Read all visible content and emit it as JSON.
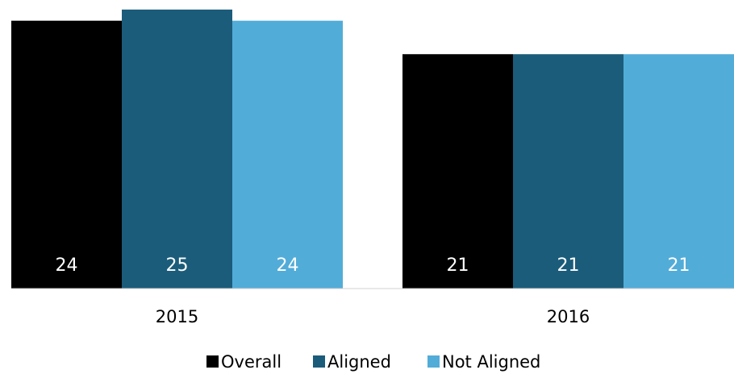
{
  "chart_data": {
    "type": "bar",
    "categories": [
      "2015",
      "2016"
    ],
    "series": [
      {
        "name": "Overall",
        "color": "#000000",
        "values": [
          24,
          21
        ]
      },
      {
        "name": "Aligned",
        "color": "#1b5c7a",
        "values": [
          25,
          21
        ]
      },
      {
        "name": "Not Aligned",
        "color": "#52acd8",
        "values": [
          24,
          21
        ]
      }
    ],
    "ylim": [
      0,
      26
    ],
    "legend": "bottom"
  }
}
